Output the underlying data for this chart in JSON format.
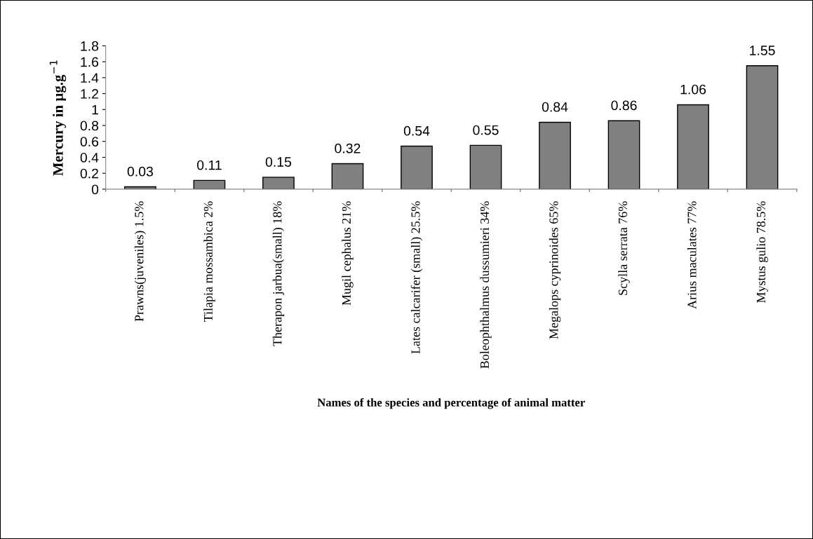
{
  "chart_data": {
    "type": "bar",
    "xlabel": "Names of the species and percentage of animal matter",
    "ylabel": "Mercury in µg.g$^{−1}$",
    "categories": [
      "Prawns(juveniles) 1.5%",
      "Tilapia mossambica 2%",
      "Therapon jarbua(small) 18%",
      "Mugil cephalus 21%",
      "Lates calcarifer (small) 25.5%",
      "Boleophthalmus dussumieri 34%",
      "Megalops cyprinoides 65%",
      "Scylla serrata 76%",
      "Arius maculates 77%",
      "Mystus gulio 78.5%"
    ],
    "values": [
      0.03,
      0.11,
      0.15,
      0.32,
      0.54,
      0.55,
      0.84,
      0.86,
      1.06,
      1.55
    ],
    "color": "#808080",
    "ylim": [
      0,
      1.8
    ],
    "yticks": [
      0,
      0.2,
      0.4,
      0.6,
      0.8,
      1,
      1.2,
      1.4,
      1.6,
      1.8
    ],
    "data_labels": true,
    "grid": false,
    "legend": false
  }
}
